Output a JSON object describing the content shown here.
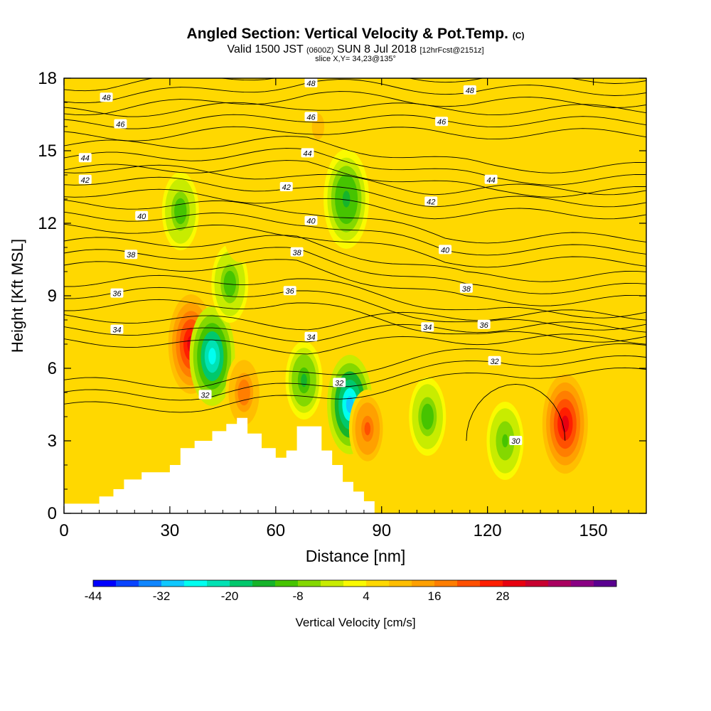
{
  "header": {
    "title": "Angled Section: Vertical Velocity & Pot.Temp.",
    "title_unit": "(C)",
    "valid_prefix": "Valid 1500 JST",
    "valid_utc": "(0600Z)",
    "valid_date": "SUN 8 Jul 2018",
    "forecast": "[12hrFcst@2151z]",
    "slice": "slice X,Y= 34,23@135°"
  },
  "chart_data": {
    "type": "heatmap",
    "title": "Angled Section: Vertical Velocity & Pot.Temp.",
    "xlabel": "Distance [nm]",
    "ylabel": "Height [Kft MSL]",
    "xlim": [
      0,
      165
    ],
    "ylim": [
      0,
      18
    ],
    "xticks": [
      0,
      30,
      60,
      90,
      120,
      150
    ],
    "yticks": [
      0,
      3,
      6,
      9,
      12,
      15,
      18
    ],
    "colorbar": {
      "label": "Vertical Velocity [cm/s]",
      "min": -44,
      "step": 4,
      "tick_labels": [
        "-44",
        "-32",
        "-20",
        "-8",
        "4",
        "16",
        "28"
      ],
      "colors": [
        "#0000ff",
        "#0a44ff",
        "#0f86ff",
        "#10c8ff",
        "#00fff0",
        "#00e2b4",
        "#00c86c",
        "#16b42a",
        "#46c400",
        "#84d800",
        "#c8ec00",
        "#fafa00",
        "#ffd800",
        "#ffbe00",
        "#ffa000",
        "#ff7e00",
        "#ff5000",
        "#ff1e00",
        "#e80010",
        "#c80030",
        "#aa0060",
        "#8a0084",
        "#5a0090"
      ]
    },
    "terrain": {
      "description": "white terrain profile (height Kft vs distance nm)",
      "x": [
        10,
        14,
        17,
        22,
        30,
        33,
        37,
        42,
        46,
        49,
        52,
        56,
        60,
        63,
        66,
        70,
        73,
        76,
        79,
        82,
        85,
        88
      ],
      "y": [
        0.7,
        1.0,
        1.4,
        1.7,
        2.0,
        2.7,
        3.0,
        3.4,
        3.7,
        3.95,
        3.3,
        2.7,
        2.3,
        2.6,
        3.6,
        3.6,
        2.6,
        2.0,
        1.3,
        0.9,
        0.5,
        0.3
      ]
    },
    "vertical_velocity_cells": [
      {
        "x": 36,
        "y": 7.0,
        "value": 32
      },
      {
        "x": 42,
        "y": 6.5,
        "value": -32
      },
      {
        "x": 47,
        "y": 9.5,
        "value": -14
      },
      {
        "x": 33,
        "y": 12.5,
        "value": -14
      },
      {
        "x": 51,
        "y": 5.0,
        "value": 22
      },
      {
        "x": 68,
        "y": 5.5,
        "value": -16
      },
      {
        "x": 81,
        "y": 4.5,
        "value": -36
      },
      {
        "x": 80,
        "y": 13.0,
        "value": -18
      },
      {
        "x": 86,
        "y": 3.5,
        "value": 24
      },
      {
        "x": 142,
        "y": 3.7,
        "value": 32
      },
      {
        "x": 125,
        "y": 3.0,
        "value": -12
      },
      {
        "x": 103,
        "y": 4.0,
        "value": -14
      },
      {
        "x": 97,
        "y": 12.0,
        "value": 8
      },
      {
        "x": 72,
        "y": 16.0,
        "value": 10
      },
      {
        "x": 50,
        "y": 12.0,
        "value": 8
      },
      {
        "x": 28,
        "y": 15.5,
        "value": 8
      },
      {
        "x": 18,
        "y": 13.0,
        "value": 6
      }
    ],
    "contour_labels": [
      {
        "x": 12,
        "y": 17.2,
        "value": "48"
      },
      {
        "x": 70,
        "y": 17.8,
        "value": "48"
      },
      {
        "x": 115,
        "y": 17.5,
        "value": "48"
      },
      {
        "x": 16,
        "y": 16.1,
        "value": "46"
      },
      {
        "x": 70,
        "y": 16.4,
        "value": "46"
      },
      {
        "x": 107,
        "y": 16.2,
        "value": "46"
      },
      {
        "x": 6,
        "y": 14.7,
        "value": "44"
      },
      {
        "x": 69,
        "y": 14.9,
        "value": "44"
      },
      {
        "x": 121,
        "y": 13.8,
        "value": "44"
      },
      {
        "x": 6,
        "y": 13.8,
        "value": "42"
      },
      {
        "x": 63,
        "y": 13.5,
        "value": "42"
      },
      {
        "x": 104,
        "y": 12.9,
        "value": "42"
      },
      {
        "x": 22,
        "y": 12.3,
        "value": "40"
      },
      {
        "x": 70,
        "y": 12.1,
        "value": "40"
      },
      {
        "x": 108,
        "y": 10.9,
        "value": "40"
      },
      {
        "x": 19,
        "y": 10.7,
        "value": "38"
      },
      {
        "x": 66,
        "y": 10.8,
        "value": "38"
      },
      {
        "x": 114,
        "y": 9.3,
        "value": "38"
      },
      {
        "x": 15,
        "y": 9.1,
        "value": "36"
      },
      {
        "x": 64,
        "y": 9.2,
        "value": "36"
      },
      {
        "x": 119,
        "y": 7.8,
        "value": "36"
      },
      {
        "x": 15,
        "y": 7.6,
        "value": "34"
      },
      {
        "x": 70,
        "y": 7.3,
        "value": "34"
      },
      {
        "x": 103,
        "y": 7.7,
        "value": "34"
      },
      {
        "x": 40,
        "y": 4.9,
        "value": "32"
      },
      {
        "x": 78,
        "y": 5.4,
        "value": "32"
      },
      {
        "x": 122,
        "y": 6.3,
        "value": "32"
      },
      {
        "x": 128,
        "y": 3.0,
        "value": "30"
      }
    ]
  }
}
